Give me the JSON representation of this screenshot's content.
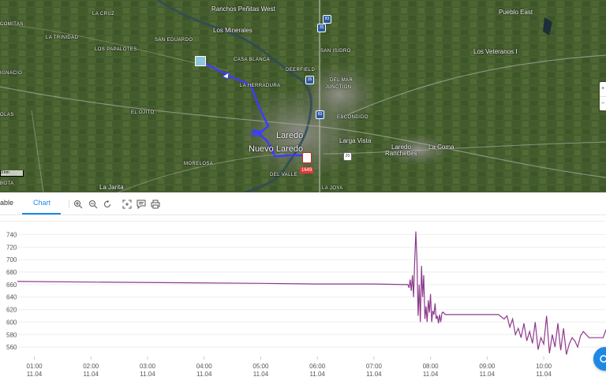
{
  "map": {
    "labels": [
      {
        "text": "COMITAS",
        "size": "small"
      },
      {
        "text": "LA CRUZ",
        "size": "small"
      },
      {
        "text": "Ranchos Peñitas West",
        "size": "med"
      },
      {
        "text": "Pueblo East",
        "size": "med"
      },
      {
        "text": "LA TRINIDAD",
        "size": "small"
      },
      {
        "text": "Los Minerales",
        "size": "med"
      },
      {
        "text": "SAN EDUARDO",
        "size": "small"
      },
      {
        "text": "LOS PAPALOTES",
        "size": "small"
      },
      {
        "text": "SAN ISIDRO",
        "size": "small"
      },
      {
        "text": "Los Veteranos I",
        "size": "med"
      },
      {
        "text": "CASA BLANCA",
        "size": "small"
      },
      {
        "text": "DEERFIELD",
        "size": "small"
      },
      {
        "text": "IGNACIO",
        "size": "small"
      },
      {
        "text": "LA HERRADURA",
        "size": "small"
      },
      {
        "text": "DEL MAR",
        "size": "small"
      },
      {
        "text": "JUNCTION",
        "size": "small"
      },
      {
        "text": "EL OJITO",
        "size": "small"
      },
      {
        "text": "ESCONDIDO",
        "size": "small"
      },
      {
        "text": "OLAS",
        "size": "small"
      },
      {
        "text": "Laredo",
        "size": "big"
      },
      {
        "text": "Larga Vista",
        "size": "med"
      },
      {
        "text": "Laredo",
        "size": "med"
      },
      {
        "text": "Ranchettes",
        "size": "med"
      },
      {
        "text": "La Coma",
        "size": "med"
      },
      {
        "text": "Nuevo Laredo",
        "size": "big"
      },
      {
        "text": "MORELOSA",
        "size": "small"
      },
      {
        "text": "DEL VALLE",
        "size": "small"
      },
      {
        "text": "LA JOYA",
        "size": "small"
      },
      {
        "text": "La Jarita",
        "size": "med"
      },
      {
        "text": "BOTA",
        "size": "small"
      }
    ],
    "shields": [
      "83",
      "35",
      "83",
      "20",
      "35"
    ],
    "marker_badge": "1649",
    "scale_label": "3 km",
    "route_color": "#3d3dff"
  },
  "toolbar": {
    "tabs": [
      {
        "label": "able",
        "active": false
      },
      {
        "label": "Chart",
        "active": true
      }
    ],
    "icons": [
      "zoom-in-icon",
      "zoom-out-icon",
      "reset-zoom-icon",
      "crosshair-icon",
      "comment-icon",
      "print-icon"
    ]
  },
  "chart_data": {
    "type": "line",
    "title": "",
    "xlabel": "",
    "ylabel": "",
    "ylim": [
      545,
      752
    ],
    "yticks": [
      560,
      580,
      600,
      620,
      640,
      660,
      680,
      700,
      720,
      740
    ],
    "xticks": [
      {
        "time": "01:00",
        "date": "11.04"
      },
      {
        "time": "02:00",
        "date": "11.04"
      },
      {
        "time": "03:00",
        "date": "11.04"
      },
      {
        "time": "04:00",
        "date": "11.04"
      },
      {
        "time": "05:00",
        "date": "11.04"
      },
      {
        "time": "06:00",
        "date": "11.04"
      },
      {
        "time": "07:00",
        "date": "11.04"
      },
      {
        "time": "08:00",
        "date": "11.04"
      },
      {
        "time": "09:00",
        "date": "11.04"
      },
      {
        "time": "10:00",
        "date": "11.04"
      }
    ],
    "x_hours_range": [
      0.7,
      11.1
    ],
    "grid": true,
    "series": [
      {
        "color": "#8e3a8e",
        "x": [
          0.7,
          2.0,
          3.5,
          5.0,
          6.0,
          7.0,
          7.6,
          7.62,
          7.64,
          7.66,
          7.68,
          7.7,
          7.72,
          7.74,
          7.76,
          7.78,
          7.8,
          7.82,
          7.84,
          7.86,
          7.88,
          7.9,
          7.92,
          7.94,
          7.96,
          7.98,
          8.0,
          8.02,
          8.04,
          8.06,
          8.08,
          8.1,
          8.12,
          8.14,
          8.16,
          8.18,
          8.2,
          8.22,
          8.26,
          8.3,
          8.4,
          8.6,
          8.8,
          9.0,
          9.2,
          9.3,
          9.35,
          9.4,
          9.45,
          9.5,
          9.55,
          9.6,
          9.65,
          9.7,
          9.75,
          9.8,
          9.85,
          9.9,
          9.95,
          10.0,
          10.05,
          10.1,
          10.15,
          10.2,
          10.25,
          10.3,
          10.35,
          10.4,
          10.45,
          10.5,
          10.55,
          10.6,
          10.65,
          10.7,
          10.8,
          10.9,
          11.0,
          11.05,
          11.1
        ],
        "y": [
          665,
          664,
          663,
          662,
          661,
          661,
          660,
          655,
          668,
          650,
          675,
          640,
          695,
          745,
          700,
          610,
          660,
          600,
          690,
          640,
          675,
          605,
          625,
          600,
          635,
          615,
          645,
          600,
          618,
          612,
          630,
          605,
          610,
          598,
          612,
          600,
          614,
          616,
          612,
          612,
          612,
          612,
          612,
          612,
          612,
          605,
          610,
          592,
          605,
          580,
          590,
          575,
          598,
          570,
          585,
          566,
          600,
          556,
          575,
          565,
          610,
          550,
          580,
          560,
          598,
          555,
          590,
          548,
          565,
          575,
          570,
          560,
          578,
          585,
          575,
          575,
          575,
          575,
          588
        ]
      }
    ]
  }
}
